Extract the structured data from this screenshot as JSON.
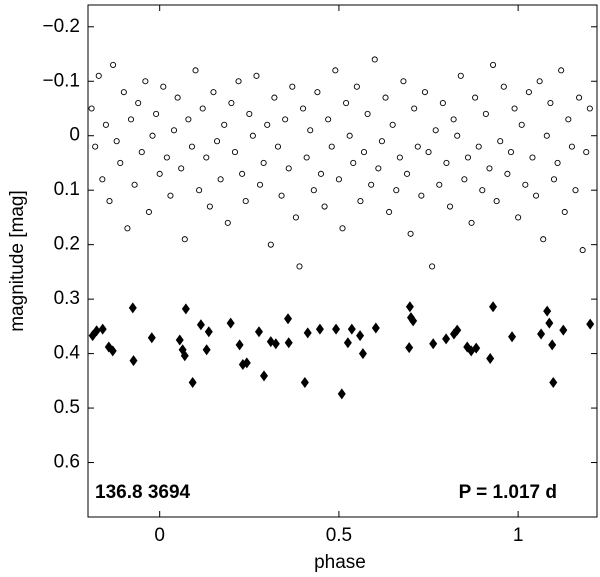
{
  "chart_data": {
    "type": "scatter",
    "xlabel": "phase",
    "ylabel": "magnitude  [mag]",
    "annotations": [
      "136.8 3694",
      "P = 1.017 d"
    ],
    "xlim": [
      -0.2,
      1.22
    ],
    "xticks": [
      0,
      0.5,
      1
    ],
    "ylim": [
      -0.24,
      0.7
    ],
    "invert_y": true,
    "yticks": [
      {
        "value": -0.2,
        "label": "−0.2"
      },
      {
        "value": -0.1,
        "label": "−0.1"
      },
      0,
      0.1,
      0.2,
      0.3,
      0.4,
      0.5,
      0.6
    ],
    "series": [
      {
        "marker": "circle",
        "color": "#000000",
        "x": [
          -0.19,
          -0.18,
          -0.17,
          -0.16,
          -0.15,
          -0.14,
          -0.13,
          -0.12,
          -0.11,
          -0.1,
          -0.09,
          -0.08,
          -0.07,
          -0.06,
          -0.05,
          -0.04,
          -0.03,
          -0.02,
          -0.01,
          0,
          0.01,
          0.02,
          0.03,
          0.04,
          0.05,
          0.06,
          0.07,
          0.08,
          0.09,
          0.1,
          0.11,
          0.12,
          0.13,
          0.14,
          0.15,
          0.16,
          0.17,
          0.18,
          0.19,
          0.2,
          0.21,
          0.22,
          0.23,
          0.24,
          0.25,
          0.26,
          0.27,
          0.28,
          0.29,
          0.3,
          0.31,
          0.32,
          0.33,
          0.34,
          0.35,
          0.36,
          0.37,
          0.38,
          0.39,
          0.4,
          0.41,
          0.42,
          0.43,
          0.44,
          0.45,
          0.46,
          0.47,
          0.48,
          0.49,
          0.5,
          0.51,
          0.52,
          0.53,
          0.54,
          0.55,
          0.56,
          0.57,
          0.58,
          0.59,
          0.6,
          0.61,
          0.62,
          0.63,
          0.64,
          0.65,
          0.66,
          0.67,
          0.68,
          0.69,
          0.7,
          0.71,
          0.72,
          0.73,
          0.74,
          0.75,
          0.76,
          0.77,
          0.78,
          0.79,
          0.8,
          0.81,
          0.82,
          0.83,
          0.84,
          0.85,
          0.86,
          0.87,
          0.88,
          0.89,
          0.9,
          0.91,
          0.92,
          0.93,
          0.94,
          0.95,
          0.96,
          0.97,
          0.98,
          0.99,
          1,
          1.01,
          1.02,
          1.03,
          1.04,
          1.05,
          1.06,
          1.07,
          1.08,
          1.09,
          1.1,
          1.11,
          1.12,
          1.13,
          1.14,
          1.15,
          1.16,
          1.17,
          1.18,
          1.19,
          1.2
        ],
        "values": [
          -0.05,
          0.02,
          -0.11,
          0.08,
          -0.02,
          0.12,
          -0.13,
          0.01,
          0.05,
          -0.08,
          0.17,
          -0.03,
          0.09,
          -0.06,
          0.03,
          -0.1,
          0.14,
          0.0,
          -0.04,
          0.07,
          -0.09,
          0.04,
          0.11,
          -0.01,
          -0.07,
          0.06,
          0.19,
          -0.03,
          0.02,
          -0.12,
          0.1,
          -0.05,
          0.04,
          0.13,
          -0.08,
          0.01,
          0.08,
          -0.02,
          0.16,
          -0.06,
          0.03,
          -0.1,
          0.07,
          0.12,
          -0.04,
          0.0,
          -0.11,
          0.09,
          0.05,
          -0.02,
          0.2,
          -0.07,
          0.02,
          0.11,
          -0.03,
          0.06,
          -0.09,
          0.15,
          0.24,
          -0.05,
          0.04,
          -0.01,
          0.1,
          -0.08,
          0.07,
          0.13,
          -0.03,
          0.02,
          -0.12,
          0.08,
          0.17,
          -0.06,
          0.0,
          0.05,
          -0.09,
          0.12,
          0.03,
          -0.04,
          0.09,
          -0.14,
          0.06,
          0.01,
          -0.07,
          0.14,
          -0.02,
          0.1,
          0.04,
          -0.1,
          0.07,
          0.18,
          -0.05,
          0.02,
          0.11,
          -0.08,
          0.03,
          0.24,
          -0.01,
          0.09,
          -0.06,
          0.05,
          0.13,
          -0.03,
          0.0,
          -0.11,
          0.08,
          0.04,
          0.16,
          -0.07,
          0.02,
          0.1,
          -0.04,
          0.06,
          -0.13,
          0.12,
          0.01,
          -0.09,
          0.07,
          0.03,
          -0.05,
          0.15,
          -0.02,
          0.09,
          -0.08,
          0.04,
          0.11,
          -0.1,
          0.19,
          0.0,
          -0.06,
          0.08,
          0.05,
          -0.12,
          0.14,
          -0.03,
          0.02,
          0.1,
          -0.07,
          0.21,
          0.03,
          -0.05
        ]
      },
      {
        "marker": "diamond",
        "color": "#000000",
        "x": [
          -0.187,
          -0.176,
          -0.159,
          -0.142,
          -0.131,
          -0.075,
          -0.073,
          -0.022,
          0.073,
          0.056,
          0.064,
          0.07,
          0.092,
          0.115,
          0.131,
          0.137,
          0.198,
          0.223,
          0.232,
          0.243,
          0.277,
          0.291,
          0.31,
          0.324,
          0.358,
          0.36,
          0.405,
          0.413,
          0.447,
          0.492,
          0.508,
          0.525,
          0.536,
          0.559,
          0.567,
          0.603,
          0.696,
          0.698,
          0.701,
          0.707,
          0.763,
          0.799,
          0.821,
          0.83,
          0.858,
          0.869,
          0.883,
          0.922,
          0.93,
          0.983,
          1.064,
          1.081,
          1.087,
          1.095,
          1.098,
          1.126,
          1.201
        ],
        "values": [
          0.367,
          0.358,
          0.355,
          0.388,
          0.395,
          0.316,
          0.413,
          0.371,
          0.318,
          0.375,
          0.393,
          0.404,
          0.453,
          0.347,
          0.393,
          0.36,
          0.344,
          0.384,
          0.42,
          0.417,
          0.36,
          0.441,
          0.378,
          0.382,
          0.336,
          0.38,
          0.453,
          0.362,
          0.355,
          0.355,
          0.474,
          0.38,
          0.355,
          0.367,
          0.4,
          0.353,
          0.389,
          0.314,
          0.334,
          0.34,
          0.382,
          0.373,
          0.364,
          0.357,
          0.388,
          0.395,
          0.39,
          0.409,
          0.314,
          0.369,
          0.364,
          0.322,
          0.344,
          0.384,
          0.453,
          0.357,
          0.346
        ]
      }
    ]
  }
}
